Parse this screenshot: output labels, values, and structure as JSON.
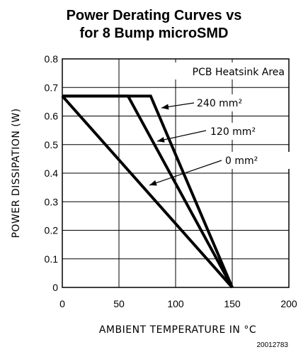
{
  "chart_data": {
    "type": "line",
    "title": "Power Derating Curves vs",
    "subtitle": "for 8 Bump microSMD",
    "xlabel": "AMBIENT TEMPERATURE IN °C",
    "ylabel": "POWER DISSIPATION (W)",
    "xlim": [
      0,
      200
    ],
    "ylim": [
      0,
      0.8
    ],
    "x_ticks": [
      "0",
      "50",
      "100",
      "150",
      "200"
    ],
    "y_ticks": [
      "0",
      "0.1",
      "0.2",
      "0.3",
      "0.4",
      "0.5",
      "0.6",
      "0.7",
      "0.8"
    ],
    "grid": true,
    "legend_title": "PCB Heatsink Area",
    "series": [
      {
        "name": "240 mm²",
        "x": [
          0,
          78,
          150
        ],
        "y": [
          0.67,
          0.67,
          0
        ]
      },
      {
        "name": "120 mm²",
        "x": [
          0,
          58,
          150
        ],
        "y": [
          0.67,
          0.67,
          0
        ]
      },
      {
        "name": "0 mm²",
        "x": [
          0,
          150
        ],
        "y": [
          0.67,
          0
        ]
      }
    ],
    "figure_id": "20012783"
  }
}
